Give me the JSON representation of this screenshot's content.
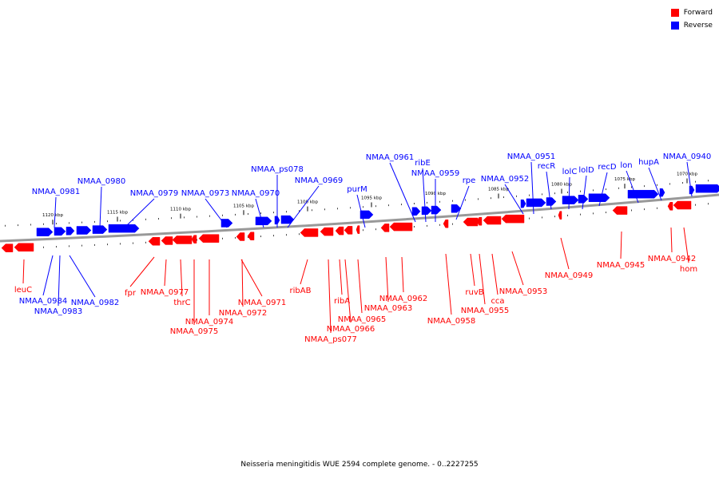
{
  "legend": {
    "forward_label": "Forward",
    "reverse_label": "Reverse",
    "forward_color": "#ff0000",
    "reverse_color": "#0000ff"
  },
  "caption": "Neisseria meningitidis WUE 2594 complete genome. - 0..2227255",
  "scale_unit": "kbp",
  "scale_ticks": [
    "1120 kbp",
    "1115 kbp",
    "1110 kbp",
    "1105 kbp",
    "1100 kbp",
    "1095 kbp",
    "1090 kbp",
    "1085 kbp",
    "1080 kbp",
    "1075 kbp",
    "1070 kbp"
  ],
  "genes_reverse": [
    "NMAA_0981",
    "NMAA_0980",
    "NMAA_0979",
    "NMAA_0973",
    "NMAA_0970",
    "NMAA_ps078",
    "NMAA_0969",
    "purM",
    "NMAA_0961",
    "ribE",
    "NMAA_0959",
    "rpe",
    "NMAA_0952",
    "NMAA_0951",
    "recR",
    "lolC",
    "lolD",
    "recD",
    "lon",
    "hupA",
    "NMAA_0940",
    "NMAA_0984",
    "NMAA_0983",
    "NMAA_0982"
  ],
  "genes_forward": [
    "leuC",
    "fpr",
    "NMAA_0977",
    "thrC",
    "NMAA_0974",
    "NMAA_0975",
    "NMAA_0971",
    "NMAA_0972",
    "ribAB",
    "ribA",
    "NMAA_ps077",
    "NMAA_0966",
    "NMAA_0965",
    "NMAA_0962",
    "NMAA_0963",
    "NMAA_0958",
    "ruvB",
    "NMAA_0955",
    "cca",
    "NMAA_0953",
    "NMAA_0949",
    "NMAA_0945",
    "NMAA_0942",
    "hom"
  ]
}
